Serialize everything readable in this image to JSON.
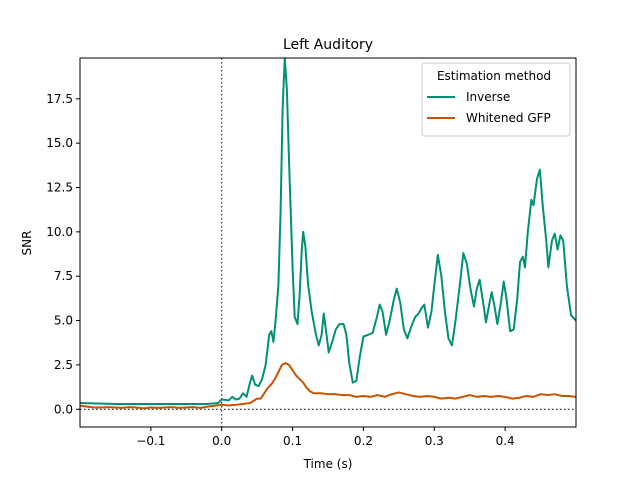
{
  "chart_data": {
    "type": "line",
    "title": "Left Auditory",
    "xlabel": "Time (s)",
    "ylabel": "SNR",
    "xlim": [
      -0.2,
      0.5
    ],
    "ylim": [
      -1.0,
      19.8
    ],
    "xticks": [
      -0.1,
      0.0,
      0.1,
      0.2,
      0.3,
      0.4
    ],
    "xtick_labels": [
      "−0.1",
      "0.0",
      "0.1",
      "0.2",
      "0.3",
      "0.4"
    ],
    "yticks": [
      0.0,
      2.5,
      5.0,
      7.5,
      10.0,
      12.5,
      15.0,
      17.5
    ],
    "ytick_labels": [
      "0.0",
      "2.5",
      "5.0",
      "7.5",
      "10.0",
      "12.5",
      "15.0",
      "17.5"
    ],
    "grid": false,
    "reference_lines": {
      "vertical_at_x": 0.0,
      "horizontal_at_y": 0.0,
      "style": "dotted"
    },
    "legend": {
      "title": "Estimation method",
      "placement": "top-right"
    },
    "series": [
      {
        "name": "Inverse",
        "color": "#009175",
        "points": [
          [
            -0.2,
            0.35
          ],
          [
            -0.15,
            0.3
          ],
          [
            -0.1,
            0.3
          ],
          [
            -0.05,
            0.3
          ],
          [
            -0.02,
            0.3
          ],
          [
            -0.005,
            0.35
          ],
          [
            0.0,
            0.55
          ],
          [
            0.01,
            0.5
          ],
          [
            0.015,
            0.7
          ],
          [
            0.02,
            0.55
          ],
          [
            0.025,
            0.6
          ],
          [
            0.03,
            0.9
          ],
          [
            0.035,
            0.7
          ],
          [
            0.04,
            1.5
          ],
          [
            0.043,
            1.9
          ],
          [
            0.047,
            1.4
          ],
          [
            0.052,
            1.3
          ],
          [
            0.057,
            1.7
          ],
          [
            0.062,
            2.5
          ],
          [
            0.067,
            4.2
          ],
          [
            0.07,
            4.4
          ],
          [
            0.073,
            3.8
          ],
          [
            0.076,
            5.0
          ],
          [
            0.08,
            7.0
          ],
          [
            0.083,
            11.0
          ],
          [
            0.086,
            17.0
          ],
          [
            0.089,
            19.8
          ],
          [
            0.092,
            18.0
          ],
          [
            0.095,
            14.0
          ],
          [
            0.1,
            8.0
          ],
          [
            0.103,
            5.2
          ],
          [
            0.107,
            4.8
          ],
          [
            0.11,
            6.5
          ],
          [
            0.113,
            9.0
          ],
          [
            0.115,
            10.0
          ],
          [
            0.118,
            9.2
          ],
          [
            0.122,
            7.0
          ],
          [
            0.127,
            5.5
          ],
          [
            0.133,
            4.2
          ],
          [
            0.137,
            3.6
          ],
          [
            0.141,
            4.2
          ],
          [
            0.144,
            5.4
          ],
          [
            0.147,
            4.5
          ],
          [
            0.151,
            3.2
          ],
          [
            0.156,
            3.8
          ],
          [
            0.161,
            4.5
          ],
          [
            0.166,
            4.8
          ],
          [
            0.172,
            4.8
          ],
          [
            0.176,
            4.2
          ],
          [
            0.18,
            2.6
          ],
          [
            0.185,
            1.5
          ],
          [
            0.19,
            1.6
          ],
          [
            0.195,
            3.0
          ],
          [
            0.2,
            4.1
          ],
          [
            0.207,
            4.2
          ],
          [
            0.213,
            4.3
          ],
          [
            0.219,
            5.2
          ],
          [
            0.223,
            5.9
          ],
          [
            0.227,
            5.5
          ],
          [
            0.232,
            4.2
          ],
          [
            0.237,
            5.0
          ],
          [
            0.243,
            6.2
          ],
          [
            0.247,
            6.8
          ],
          [
            0.252,
            6.0
          ],
          [
            0.257,
            4.5
          ],
          [
            0.262,
            4.0
          ],
          [
            0.267,
            4.6
          ],
          [
            0.273,
            5.2
          ],
          [
            0.278,
            5.4
          ],
          [
            0.282,
            5.7
          ],
          [
            0.286,
            5.9
          ],
          [
            0.291,
            4.6
          ],
          [
            0.296,
            5.5
          ],
          [
            0.3,
            7.0
          ],
          [
            0.305,
            8.7
          ],
          [
            0.31,
            7.5
          ],
          [
            0.315,
            5.5
          ],
          [
            0.32,
            4.0
          ],
          [
            0.325,
            3.6
          ],
          [
            0.33,
            5.0
          ],
          [
            0.336,
            7.0
          ],
          [
            0.341,
            8.8
          ],
          [
            0.346,
            8.2
          ],
          [
            0.351,
            6.8
          ],
          [
            0.356,
            5.8
          ],
          [
            0.36,
            6.8
          ],
          [
            0.364,
            7.3
          ],
          [
            0.369,
            6.0
          ],
          [
            0.373,
            4.9
          ],
          [
            0.377,
            5.8
          ],
          [
            0.381,
            6.6
          ],
          [
            0.385,
            5.8
          ],
          [
            0.389,
            4.8
          ],
          [
            0.394,
            6.0
          ],
          [
            0.398,
            7.2
          ],
          [
            0.402,
            6.2
          ],
          [
            0.407,
            4.4
          ],
          [
            0.412,
            4.5
          ],
          [
            0.417,
            6.2
          ],
          [
            0.421,
            8.3
          ],
          [
            0.425,
            8.6
          ],
          [
            0.428,
            8.0
          ],
          [
            0.432,
            10.0
          ],
          [
            0.437,
            11.8
          ],
          [
            0.44,
            11.5
          ],
          [
            0.445,
            13.0
          ],
          [
            0.449,
            13.5
          ],
          [
            0.453,
            11.5
          ],
          [
            0.458,
            9.5
          ],
          [
            0.461,
            8.0
          ],
          [
            0.466,
            9.5
          ],
          [
            0.47,
            9.9
          ],
          [
            0.474,
            9.0
          ],
          [
            0.478,
            9.8
          ],
          [
            0.482,
            9.5
          ],
          [
            0.487,
            7.0
          ],
          [
            0.493,
            5.3
          ],
          [
            0.5,
            5.0
          ]
        ]
      },
      {
        "name": "Whitened GFP",
        "color": "#c85200",
        "points": [
          [
            -0.2,
            0.2
          ],
          [
            -0.19,
            0.15
          ],
          [
            -0.18,
            0.1
          ],
          [
            -0.17,
            0.1
          ],
          [
            -0.16,
            0.12
          ],
          [
            -0.15,
            0.1
          ],
          [
            -0.14,
            0.08
          ],
          [
            -0.13,
            0.12
          ],
          [
            -0.12,
            0.1
          ],
          [
            -0.11,
            0.05
          ],
          [
            -0.1,
            0.1
          ],
          [
            -0.09,
            0.08
          ],
          [
            -0.08,
            0.1
          ],
          [
            -0.07,
            0.12
          ],
          [
            -0.06,
            0.08
          ],
          [
            -0.05,
            0.1
          ],
          [
            -0.04,
            0.12
          ],
          [
            -0.03,
            0.08
          ],
          [
            -0.02,
            0.15
          ],
          [
            -0.01,
            0.2
          ],
          [
            0.0,
            0.25
          ],
          [
            0.01,
            0.22
          ],
          [
            0.02,
            0.25
          ],
          [
            0.03,
            0.3
          ],
          [
            0.04,
            0.35
          ],
          [
            0.05,
            0.6
          ],
          [
            0.055,
            0.6
          ],
          [
            0.06,
            0.9
          ],
          [
            0.065,
            1.2
          ],
          [
            0.07,
            1.4
          ],
          [
            0.075,
            1.7
          ],
          [
            0.08,
            2.1
          ],
          [
            0.085,
            2.5
          ],
          [
            0.09,
            2.6
          ],
          [
            0.095,
            2.5
          ],
          [
            0.1,
            2.2
          ],
          [
            0.105,
            1.9
          ],
          [
            0.11,
            1.7
          ],
          [
            0.115,
            1.5
          ],
          [
            0.12,
            1.2
          ],
          [
            0.125,
            1.0
          ],
          [
            0.13,
            0.9
          ],
          [
            0.14,
            0.9
          ],
          [
            0.15,
            0.85
          ],
          [
            0.16,
            0.85
          ],
          [
            0.17,
            0.8
          ],
          [
            0.18,
            0.8
          ],
          [
            0.19,
            0.7
          ],
          [
            0.2,
            0.75
          ],
          [
            0.21,
            0.7
          ],
          [
            0.22,
            0.8
          ],
          [
            0.23,
            0.7
          ],
          [
            0.24,
            0.85
          ],
          [
            0.25,
            0.95
          ],
          [
            0.26,
            0.85
          ],
          [
            0.27,
            0.75
          ],
          [
            0.28,
            0.7
          ],
          [
            0.29,
            0.75
          ],
          [
            0.3,
            0.7
          ],
          [
            0.31,
            0.6
          ],
          [
            0.32,
            0.65
          ],
          [
            0.33,
            0.6
          ],
          [
            0.34,
            0.7
          ],
          [
            0.35,
            0.8
          ],
          [
            0.36,
            0.7
          ],
          [
            0.37,
            0.75
          ],
          [
            0.38,
            0.7
          ],
          [
            0.39,
            0.75
          ],
          [
            0.4,
            0.7
          ],
          [
            0.41,
            0.6
          ],
          [
            0.42,
            0.65
          ],
          [
            0.43,
            0.75
          ],
          [
            0.44,
            0.7
          ],
          [
            0.45,
            0.85
          ],
          [
            0.46,
            0.8
          ],
          [
            0.47,
            0.85
          ],
          [
            0.48,
            0.75
          ],
          [
            0.49,
            0.75
          ],
          [
            0.5,
            0.7
          ]
        ]
      }
    ]
  }
}
